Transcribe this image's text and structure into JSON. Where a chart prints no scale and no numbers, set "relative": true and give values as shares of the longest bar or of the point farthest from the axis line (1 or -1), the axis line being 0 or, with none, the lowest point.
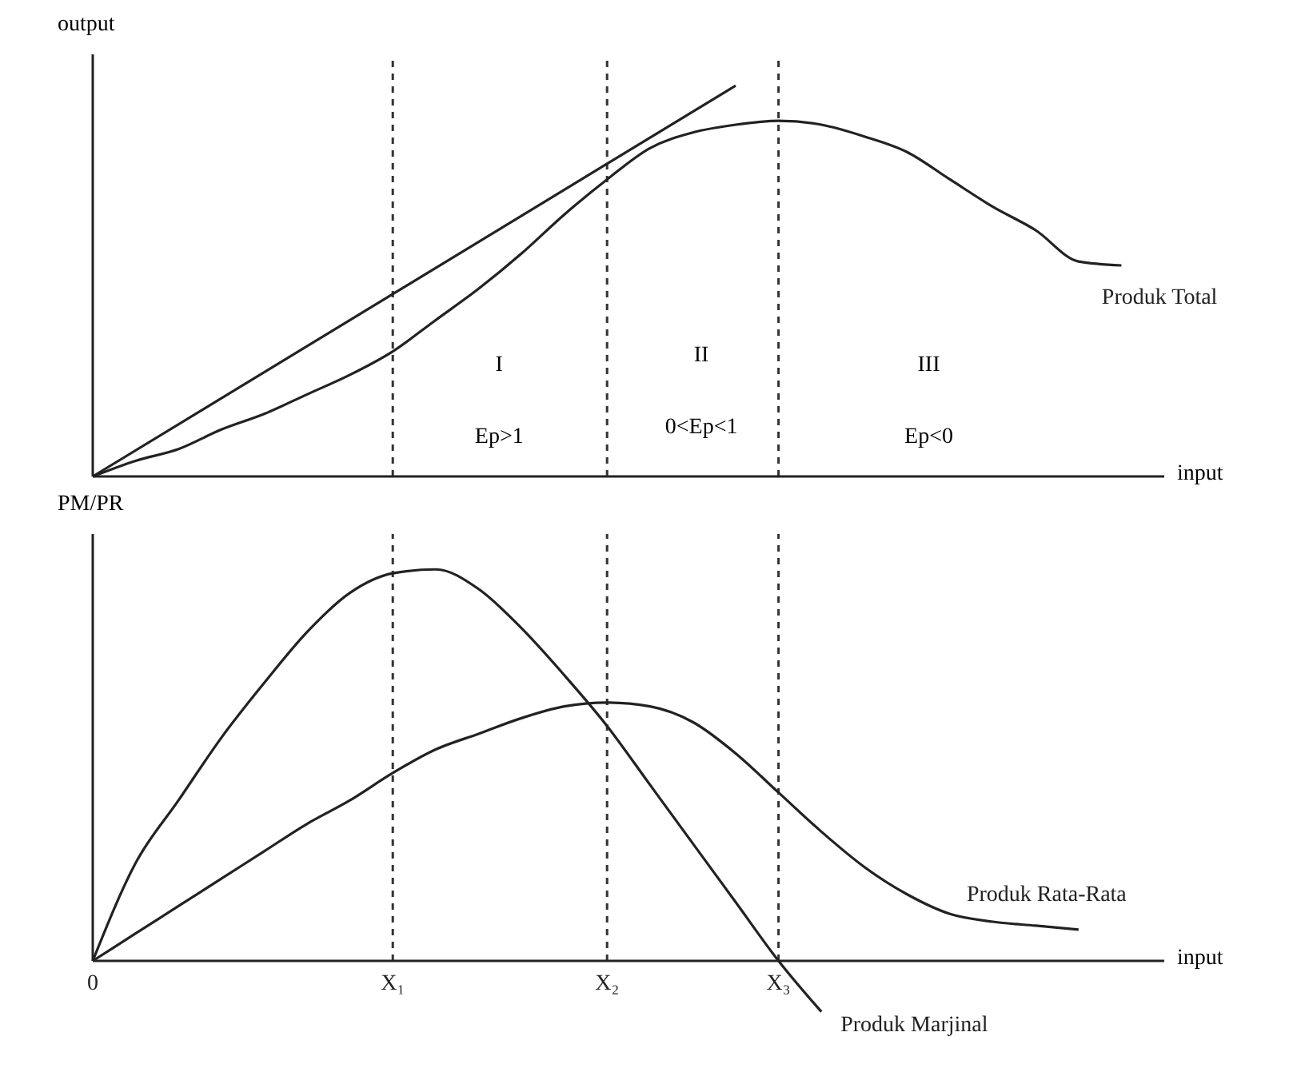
{
  "chart_data": [
    {
      "type": "line",
      "ylabel": "output",
      "xlabel": "input",
      "relative": true,
      "tick_labels": false,
      "legend": false,
      "grid": false,
      "marker": "none",
      "categories": [
        "0",
        null,
        null,
        null,
        null,
        null,
        null,
        "X₁",
        null,
        null,
        null,
        null,
        "X₂",
        null,
        null,
        null,
        "X₃",
        null,
        null,
        null,
        null,
        null,
        null,
        null,
        null
      ],
      "series": [
        {
          "name": "Produk Total",
          "color": "#222222",
          "values": [
            0,
            0.04,
            0.07,
            0.12,
            0.16,
            0.21,
            0.26,
            0.32,
            0.4,
            0.48,
            0.57,
            0.67,
            0.76,
            0.84,
            0.88,
            0.9,
            0.91,
            0.9,
            0.87,
            0.83,
            0.76,
            0.69,
            0.63,
            0.55,
            0.54
          ]
        },
        {
          "color": "#222222",
          "values": [
            0,
            null,
            null,
            null,
            null,
            null,
            null,
            null,
            null,
            null,
            null,
            null,
            null,
            null,
            null,
            1,
            null,
            null,
            null,
            null,
            null,
            null,
            null,
            null,
            null
          ]
        }
      ],
      "ref_lines": [
        {
          "axis": "x",
          "value": "X₁",
          "label": null,
          "color": "#333333",
          "line_style": "dashed"
        },
        {
          "axis": "x",
          "value": "X₂",
          "label": null,
          "color": "#333333",
          "line_style": "dashed"
        },
        {
          "axis": "x",
          "value": "X₃",
          "label": null,
          "color": "#333333",
          "line_style": "dashed"
        }
      ],
      "annotations": [
        "I",
        "II",
        "III",
        "Ep>1",
        "0<Ep<1",
        "Ep<0"
      ]
    },
    {
      "type": "line",
      "ylabel": "PM/PR",
      "xlabel": "input",
      "relative": true,
      "tick_labels": "x",
      "legend": false,
      "grid": false,
      "marker": "none",
      "categories": [
        "0",
        null,
        null,
        null,
        null,
        null,
        null,
        "X₁",
        null,
        null,
        null,
        null,
        "X₂",
        null,
        null,
        null,
        "X₃",
        null,
        null,
        null,
        null,
        null,
        null,
        null,
        null
      ],
      "series": [
        {
          "name": "Produk Marjinal",
          "color": "#222222",
          "values": [
            0,
            0.25,
            0.41,
            0.57,
            0.71,
            0.84,
            0.94,
            0.99,
            1,
            0.95,
            0.85,
            0.73,
            0.6,
            0.45,
            0.3,
            0.15,
            0,
            -0.13,
            null,
            null,
            null,
            null,
            null,
            null,
            null
          ]
        },
        {
          "name": "Produk Rata-Rata",
          "color": "#222222",
          "values": [
            0,
            0.07,
            0.14,
            0.21,
            0.28,
            0.35,
            0.41,
            0.48,
            0.54,
            0.58,
            0.62,
            0.65,
            0.66,
            0.65,
            0.61,
            0.53,
            0.43,
            0.33,
            0.24,
            0.17,
            0.12,
            0.1,
            0.09,
            0.08,
            null
          ]
        }
      ],
      "ref_lines": [
        {
          "axis": "x",
          "value": "X₁",
          "label": null,
          "color": "#333333",
          "line_style": "dashed"
        },
        {
          "axis": "x",
          "value": "X₂",
          "label": null,
          "color": "#333333",
          "line_style": "dashed"
        },
        {
          "axis": "x",
          "value": "X₃",
          "label": null,
          "color": "#333333",
          "line_style": "dashed"
        }
      ]
    }
  ]
}
